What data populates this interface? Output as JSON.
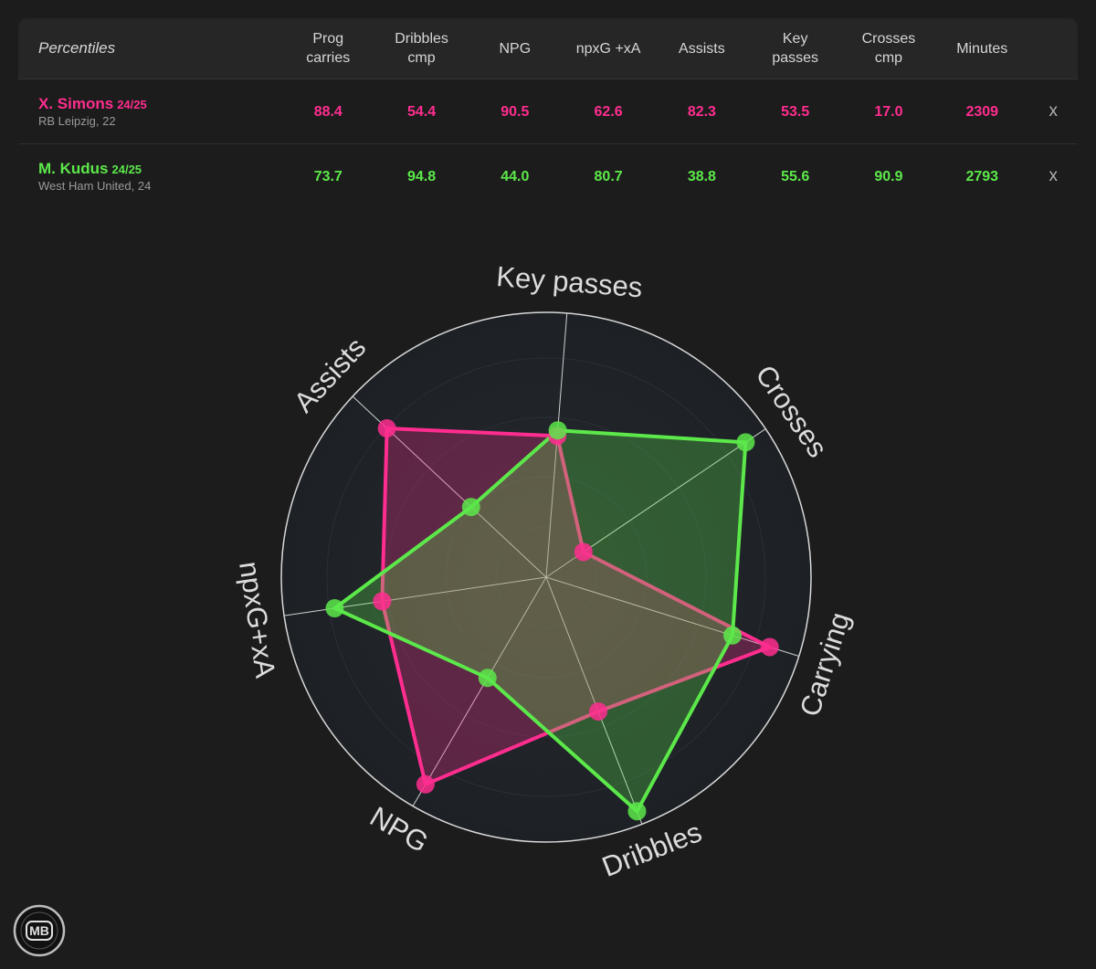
{
  "table": {
    "header_label": "Percentiles",
    "columns": [
      [
        "Prog",
        "carries"
      ],
      [
        "Dribbles",
        "cmp"
      ],
      [
        "NPG",
        ""
      ],
      [
        "npxG +xA",
        ""
      ],
      [
        "Assists",
        ""
      ],
      [
        "Key",
        "passes"
      ],
      [
        "Crosses",
        "cmp"
      ],
      [
        "Minutes",
        ""
      ]
    ],
    "players": [
      {
        "name": "X. Simons",
        "season": "24/25",
        "team": "RB Leipzig, 22",
        "color": "#ff2d8f",
        "values": [
          "88.4",
          "54.4",
          "90.5",
          "62.6",
          "82.3",
          "53.5",
          "17.0",
          "2309"
        ],
        "remove": "x"
      },
      {
        "name": "M. Kudus",
        "season": "24/25",
        "team": "West Ham United, 24",
        "color": "#5ce84a",
        "values": [
          "73.7",
          "94.8",
          "44.0",
          "80.7",
          "38.8",
          "55.6",
          "90.9",
          "2793"
        ],
        "remove": "x"
      }
    ]
  },
  "chart_data": {
    "type": "radar",
    "axes": [
      "Key passes",
      "Crosses",
      "Carrying",
      "Dribbles",
      "NPG",
      "npxG+xA",
      "Assists"
    ],
    "range": [
      0,
      100
    ],
    "series": [
      {
        "name": "X. Simons",
        "color": "#ff2d8f",
        "values": [
          53.5,
          17.0,
          88.4,
          54.4,
          90.5,
          62.6,
          82.3
        ]
      },
      {
        "name": "M. Kudus",
        "color": "#5ce84a",
        "values": [
          55.6,
          90.9,
          73.7,
          94.8,
          44.0,
          80.7,
          38.8
        ]
      }
    ]
  },
  "logo": {
    "text": "MB"
  }
}
